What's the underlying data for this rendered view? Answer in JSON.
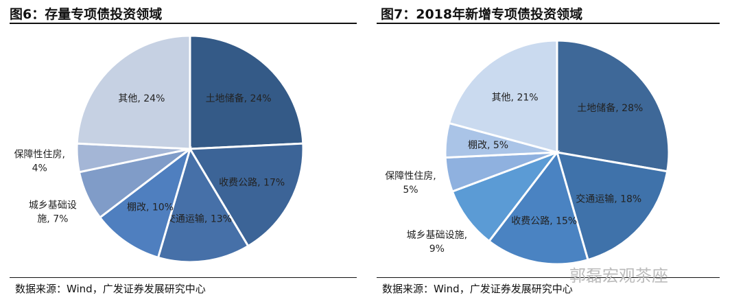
{
  "watermark": "郭磊宏观茶座",
  "chart_data": [
    {
      "type": "pie",
      "title": "图6：存量专项债投资领域",
      "source": "数据来源：Wind，广发证券发展研究中心",
      "slices": [
        {
          "label": "土地储备",
          "value": 24,
          "color": "#345a87",
          "text": "土地储备, 24%"
        },
        {
          "label": "收费公路",
          "value": 17,
          "color": "#3c6497",
          "text": "收费公路, 17%"
        },
        {
          "label": "交通运输",
          "value": 13,
          "color": "#4670a8",
          "text": "交通运输, 13%"
        },
        {
          "label": "棚改",
          "value": 10,
          "color": "#4f7fbf",
          "text": "棚改, 10%"
        },
        {
          "label": "城乡基础设施",
          "value": 7,
          "color": "#809cc8",
          "text": "城乡基础设\n施, 7%",
          "outside": true
        },
        {
          "label": "保障性住房",
          "value": 4,
          "color": "#a4b6d6",
          "text": "保障性住房,\n4%",
          "outside": true
        },
        {
          "label": "其他",
          "value": 24,
          "color": "#c6d1e3",
          "text": "其他, 24%"
        }
      ]
    },
    {
      "type": "pie",
      "title": "图7：2018年新增专项债投资领域",
      "source": "数据来源：Wind，广发证券发展研究中心",
      "slices": [
        {
          "label": "土地储备",
          "value": 28,
          "color": "#3e6898",
          "text": "土地储备, 28%"
        },
        {
          "label": "交通运输",
          "value": 18,
          "color": "#3f72aa",
          "text": "交通运输, 18%"
        },
        {
          "label": "收费公路",
          "value": 15,
          "color": "#4a83c2",
          "text": "收费公路, 15%"
        },
        {
          "label": "城乡基础设施",
          "value": 9,
          "color": "#5b9bd5",
          "text": "城乡基础设施,\n9%",
          "outside": true
        },
        {
          "label": "保障性住房",
          "value": 5,
          "color": "#8fb1df",
          "text": "保障性住房,\n5%",
          "outside": true
        },
        {
          "label": "棚改",
          "value": 5,
          "color": "#aac4e7",
          "text": "棚改, 5%"
        },
        {
          "label": "其他",
          "value": 21,
          "color": "#cadaef",
          "text": "其他, 21%"
        }
      ]
    }
  ]
}
